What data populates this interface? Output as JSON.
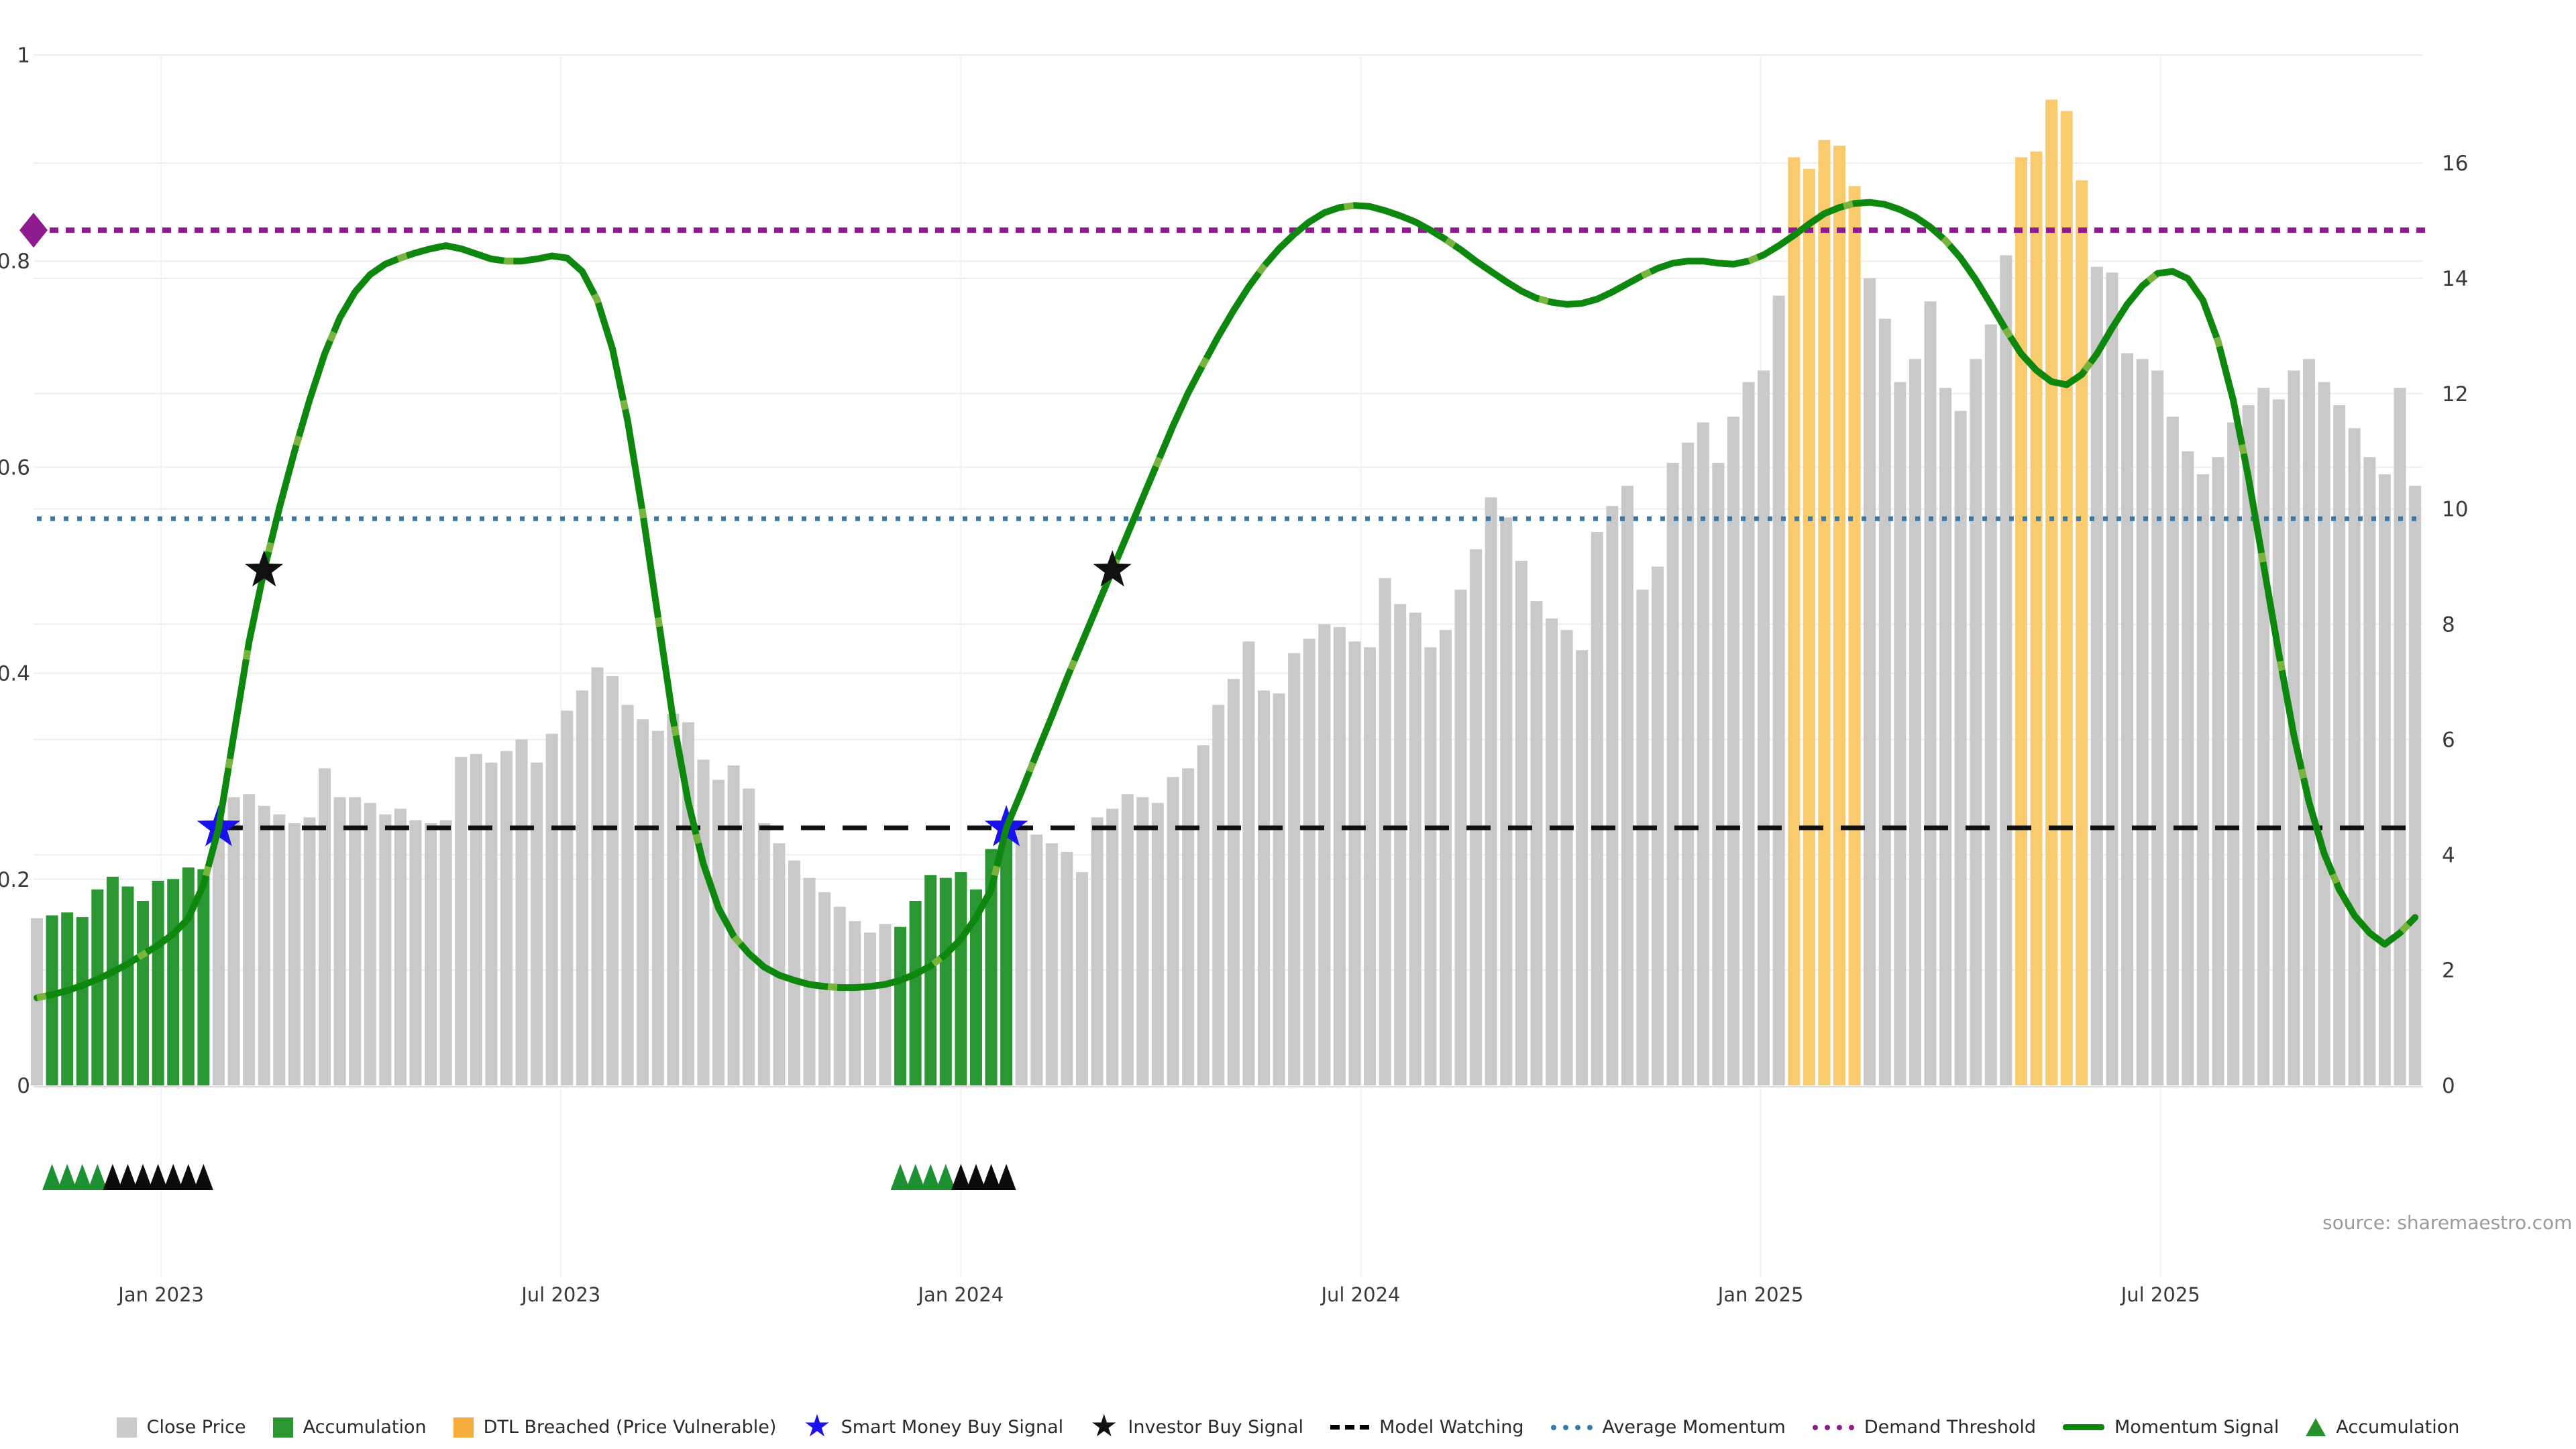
{
  "meta": {
    "source_note": "source: sharemaestro.com"
  },
  "colors": {
    "bar_gray": "#c9c9c9",
    "bar_green": "#2b9733",
    "bar_orange": "#facb6e",
    "legend_orange": "#f7ad3b",
    "momentum_line": "#0e870e",
    "momentum_overlay": "#79b43f",
    "average_momentum": "#3679a8",
    "demand_threshold": "#8e1c8e",
    "model_watching": "#111111",
    "smart_money_blue": "#1a12ee",
    "investor_black": "#111111",
    "grid": "#ededed",
    "vgrid": "#f2f2f2",
    "axis_text": "#3a3a3a",
    "baseline": "#d9d9d9"
  },
  "legend": {
    "items": [
      {
        "id": "close-price",
        "label": "Close Price",
        "swatch": "square",
        "color": "#c9c9c9"
      },
      {
        "id": "accumulation-bar",
        "label": "Accumulation",
        "swatch": "square",
        "color": "#2b9733"
      },
      {
        "id": "dtl-breached",
        "label": "DTL Breached (Price Vulnerable)",
        "swatch": "square",
        "color": "#f7ad3b"
      },
      {
        "id": "smart-money-buy-signal",
        "label": "Smart Money Buy Signal",
        "swatch": "star",
        "color": "#1a12ee"
      },
      {
        "id": "investor-buy-signal",
        "label": "Investor Buy Signal",
        "swatch": "star",
        "color": "#111111"
      },
      {
        "id": "model-watching",
        "label": "Model Watching",
        "swatch": "dashed-line",
        "color": "#111111"
      },
      {
        "id": "average-momentum",
        "label": "Average Momentum",
        "swatch": "dotted-line",
        "color": "#3679a8"
      },
      {
        "id": "demand-threshold",
        "label": "Demand Threshold",
        "swatch": "dotted-line",
        "color": "#8e1c8e"
      },
      {
        "id": "momentum-signal",
        "label": "Momentum Signal",
        "swatch": "solid-line",
        "color": "#0e870e"
      },
      {
        "id": "accumulation-marker",
        "label": "Accumulation",
        "swatch": "triangle",
        "color": "#27922c"
      }
    ]
  },
  "chart_data": {
    "type": "mixed-bar-line",
    "title": "",
    "xlabel": "",
    "ylabel_left": "",
    "ylabel_right": "",
    "x": {
      "unit": "weekly",
      "tick_labels": [
        "Jan 2023",
        "Jul 2023",
        "Jan 2024",
        "Jul 2024",
        "Jan 2025",
        "Jul 2025"
      ],
      "tick_indices": [
        8.2,
        34.6,
        61.0,
        87.4,
        113.8,
        140.2
      ]
    },
    "left_axis": {
      "range": [
        0,
        1
      ],
      "ticks": [
        0,
        0.2,
        0.4,
        0.6,
        0.8,
        1
      ]
    },
    "right_axis": {
      "range": [
        0,
        16
      ],
      "ticks": [
        0,
        2,
        4,
        6,
        8,
        10,
        12,
        14,
        16
      ]
    },
    "series": [
      {
        "name": "Close Price",
        "type": "bar",
        "axis": "right",
        "values": [
          2.9,
          2.95,
          3.0,
          2.92,
          3.4,
          3.62,
          3.45,
          3.2,
          3.55,
          3.58,
          3.78,
          3.75,
          4.5,
          5.0,
          5.05,
          4.85,
          4.7,
          4.55,
          4.65,
          5.5,
          5.0,
          5.0,
          4.9,
          4.7,
          4.8,
          4.6,
          4.55,
          4.6,
          5.7,
          5.75,
          5.6,
          5.8,
          6.0,
          5.6,
          6.1,
          6.5,
          6.85,
          7.25,
          7.1,
          6.6,
          6.35,
          6.15,
          6.45,
          6.3,
          5.65,
          5.3,
          5.55,
          5.15,
          4.55,
          4.2,
          3.9,
          3.6,
          3.35,
          3.1,
          2.85,
          2.65,
          2.8,
          2.75,
          3.2,
          3.65,
          3.6,
          3.7,
          3.4,
          4.1,
          4.55,
          4.5,
          4.35,
          4.2,
          4.05,
          3.7,
          4.65,
          4.8,
          5.05,
          5.0,
          4.9,
          5.35,
          5.5,
          5.9,
          6.6,
          7.05,
          7.7,
          6.85,
          6.8,
          7.5,
          7.75,
          8.0,
          7.95,
          7.7,
          7.6,
          8.8,
          8.35,
          8.2,
          7.6,
          7.9,
          8.6,
          9.3,
          10.2,
          9.85,
          9.1,
          8.4,
          8.1,
          7.9,
          7.55,
          9.6,
          10.05,
          10.4,
          8.6,
          9.0,
          10.8,
          11.15,
          11.5,
          10.8,
          11.6,
          12.2,
          12.4,
          13.7,
          16.1,
          15.9,
          16.4,
          16.3,
          15.6,
          14.0,
          13.3,
          12.2,
          12.6,
          13.6,
          12.1,
          11.7,
          12.6,
          13.2,
          14.4,
          16.1,
          16.2,
          17.1,
          16.9,
          15.7,
          14.2,
          14.1,
          12.7,
          12.6,
          12.4,
          11.6,
          11.0,
          10.6,
          10.9,
          11.5,
          11.8,
          12.1,
          11.9,
          12.4,
          12.6,
          12.2,
          11.8,
          11.4,
          10.9,
          10.6,
          12.1,
          10.4
        ]
      },
      {
        "name": "Momentum Signal",
        "type": "line",
        "axis": "left",
        "values": [
          0.085,
          0.088,
          0.092,
          0.097,
          0.103,
          0.11,
          0.118,
          0.127,
          0.136,
          0.147,
          0.162,
          0.195,
          0.25,
          0.34,
          0.43,
          0.5,
          0.56,
          0.615,
          0.665,
          0.71,
          0.745,
          0.77,
          0.787,
          0.797,
          0.803,
          0.808,
          0.812,
          0.815,
          0.812,
          0.807,
          0.802,
          0.8,
          0.8,
          0.802,
          0.805,
          0.803,
          0.79,
          0.762,
          0.715,
          0.645,
          0.555,
          0.455,
          0.355,
          0.275,
          0.215,
          0.172,
          0.145,
          0.128,
          0.115,
          0.107,
          0.102,
          0.098,
          0.096,
          0.095,
          0.095,
          0.096,
          0.098,
          0.102,
          0.108,
          0.116,
          0.127,
          0.142,
          0.163,
          0.19,
          0.25,
          0.285,
          0.322,
          0.358,
          0.395,
          0.43,
          0.465,
          0.5,
          0.535,
          0.57,
          0.605,
          0.64,
          0.672,
          0.7,
          0.727,
          0.752,
          0.775,
          0.795,
          0.812,
          0.826,
          0.838,
          0.847,
          0.852,
          0.854,
          0.853,
          0.849,
          0.844,
          0.838,
          0.83,
          0.821,
          0.811,
          0.8,
          0.79,
          0.78,
          0.771,
          0.764,
          0.76,
          0.758,
          0.759,
          0.763,
          0.77,
          0.778,
          0.786,
          0.793,
          0.798,
          0.8,
          0.8,
          0.798,
          0.797,
          0.8,
          0.806,
          0.815,
          0.825,
          0.836,
          0.846,
          0.852,
          0.856,
          0.857,
          0.855,
          0.85,
          0.843,
          0.833,
          0.82,
          0.803,
          0.782,
          0.758,
          0.733,
          0.71,
          0.694,
          0.683,
          0.68,
          0.69,
          0.71,
          0.735,
          0.758,
          0.776,
          0.788,
          0.79,
          0.783,
          0.762,
          0.722,
          0.665,
          0.59,
          0.505,
          0.42,
          0.34,
          0.275,
          0.225,
          0.19,
          0.165,
          0.148,
          0.137,
          0.148,
          0.163
        ]
      }
    ],
    "bar_highlights": {
      "accumulation_indices": [
        1,
        2,
        3,
        4,
        5,
        6,
        7,
        8,
        9,
        10,
        11,
        57,
        58,
        59,
        60,
        61,
        62,
        63,
        64
      ],
      "dtl_breached_indices": [
        116,
        117,
        118,
        119,
        120,
        131,
        132,
        133,
        134,
        135
      ]
    },
    "reference_lines": [
      {
        "name": "Model Watching",
        "axis": "left",
        "value": 0.25,
        "style": "dashed",
        "color": "#111111",
        "start_index": 12
      },
      {
        "name": "Average Momentum",
        "axis": "left",
        "value": 0.55,
        "style": "dotted",
        "color": "#3679a8"
      },
      {
        "name": "Demand Threshold",
        "axis": "left",
        "value": 0.83,
        "style": "dotted",
        "color": "#8e1c8e",
        "left_marker": "diamond"
      }
    ],
    "markers": {
      "smart_money_buy_signal": [
        {
          "index": 12,
          "value": 0.25
        },
        {
          "index": 64,
          "value": 0.25
        }
      ],
      "investor_buy_signal": [
        {
          "index": 15,
          "value": 0.5
        },
        {
          "index": 71,
          "value": 0.5
        }
      ]
    },
    "triangle_rows": {
      "green_indices": [
        1,
        2,
        3,
        4,
        57,
        58,
        59,
        60
      ],
      "black_indices": [
        5,
        6,
        7,
        8,
        9,
        10,
        11,
        61,
        62,
        63,
        64
      ]
    },
    "legend_position": "bottom",
    "grid": true
  }
}
